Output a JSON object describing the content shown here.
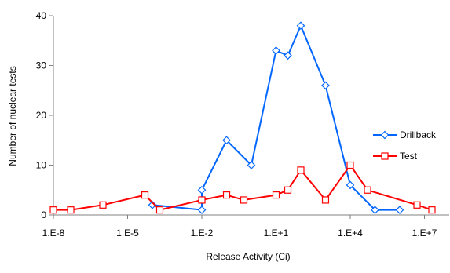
{
  "chart_data": {
    "type": "line",
    "title": "",
    "xlabel": "Release Activity (Ci)",
    "ylabel": "Number of nuclear tests",
    "x_scale": "log",
    "xlim": [
      1e-08,
      100000000.0
    ],
    "ylim": [
      0,
      40
    ],
    "x_ticks": [
      {
        "value": 1e-08,
        "label": "1.E-8"
      },
      {
        "value": 1e-05,
        "label": "1.E-5"
      },
      {
        "value": 0.01,
        "label": "1.E-2"
      },
      {
        "value": 10,
        "label": "1.E+1"
      },
      {
        "value": 10000,
        "label": "1.E+4"
      },
      {
        "value": 10000000,
        "label": "1.E+7"
      }
    ],
    "y_ticks": [
      0,
      10,
      20,
      30,
      40
    ],
    "grid": false,
    "legend_position": "right",
    "series": [
      {
        "name": "Drillback",
        "color": "#0066ff",
        "marker": "diamond",
        "x": [
          0.0001,
          0.01,
          0.01,
          0.1,
          1,
          10,
          30,
          100,
          1000,
          10000,
          100000,
          1000000
        ],
        "y": [
          2,
          1,
          5,
          15,
          10,
          33,
          32,
          38,
          26,
          6,
          1,
          1
        ]
      },
      {
        "name": "Test",
        "color": "#ff0000",
        "marker": "square",
        "x": [
          1e-08,
          5e-08,
          1e-06,
          5e-05,
          0.0002,
          0.01,
          0.1,
          0.5,
          10,
          30,
          100,
          1000,
          10000,
          50000,
          5000000,
          20000000
        ],
        "y": [
          1,
          1,
          2,
          4,
          1,
          3,
          4,
          3,
          4,
          5,
          9,
          3,
          10,
          5,
          2,
          1
        ]
      }
    ]
  }
}
